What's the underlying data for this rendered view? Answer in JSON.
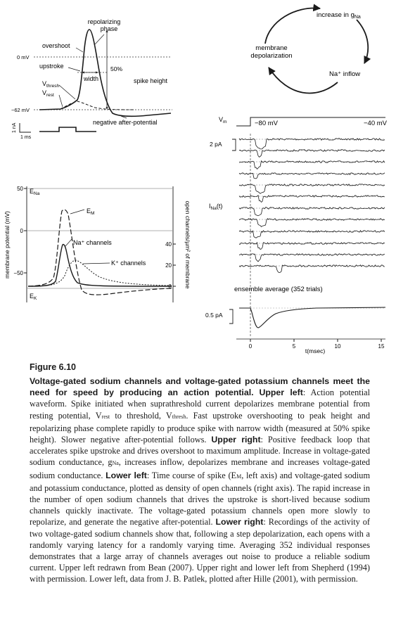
{
  "panel_ul": {
    "repolarizing": "repolarizing",
    "phase": "phase",
    "overshoot": "overshoot",
    "zero_mv": "0 mV",
    "upstroke": "upstroke",
    "fifty_pct": "50%",
    "width": "width",
    "spike_height": "spike height",
    "vthresh_v": "V",
    "vthresh_sub": "thresh",
    "vrest_v": "V",
    "vrest_sub": "rest",
    "minus62": "−62 mV",
    "neg_after": "negative after-potential",
    "one_na": "1 nA",
    "one_ms": "1 ms"
  },
  "panel_ur": {
    "increase_in_g": "increase in g",
    "g_sub": "Na",
    "membrane": "membrane",
    "depolarization": "depolarization",
    "na_inflow": "Na⁺ inflow"
  },
  "panel_ll": {
    "ena_e": "E",
    "ena_sub": "Na",
    "ek_e": "E",
    "ek_sub": "K",
    "em_e": "E",
    "em_sub": "M",
    "y_50": "50",
    "y_0": "0",
    "y_m50": "−50",
    "yaxis_left": "membrane potential (mV)",
    "yaxis_right": "open channels/µm² of membrane",
    "r_40": "40",
    "r_20": "20",
    "r_0": "0",
    "na_channels": "Na⁺ channels",
    "k_channels": "K⁺ channels"
  },
  "panel_lr": {
    "vm_v": "V",
    "vm_sub": "m",
    "m80": "−80 mV",
    "m40": "−40 mV",
    "two_pa": "2 pA",
    "ina_i": "I",
    "ina_sub": "Na",
    "ina_t": "(t)",
    "ensemble": "ensemble average (352 trials)",
    "half_pa": "0.5 pA",
    "ticks": [
      "0",
      "5",
      "10",
      "15"
    ],
    "xlabel": "t(msec)"
  },
  "caption": {
    "label": "Figure 6.10",
    "title": "Voltage-gated sodium channels and voltage-gated potassium channels meet the need for speed by producing an action potential.",
    "segments": [
      {
        "b": "Upper left"
      },
      {
        "t": ": Action potential waveform. Spike initiated when suprathreshold current depolarizes membrane potential from resting potential, V"
      },
      {
        "s": "rest"
      },
      {
        "t": " to threshold, V"
      },
      {
        "s": "thresh"
      },
      {
        "t": ". Fast upstroke overshooting to peak height and repolarizing phase complete rapidly to produce spike with narrow width (measured at 50% spike height). Slower negative after-potential follows. "
      },
      {
        "b": "Upper right"
      },
      {
        "t": ": Positive feedback loop that accelerates spike upstroke and drives overshoot to maximum amplitude. Increase in voltage-gated sodium conductance, g"
      },
      {
        "s": "Na"
      },
      {
        "t": ", increases inflow, depolarizes membrane and increases voltage-gated sodium conductance. "
      },
      {
        "b": "Lower left"
      },
      {
        "t": ": Time course of spike (E"
      },
      {
        "s": "M"
      },
      {
        "t": ", left axis) and voltage-gated sodium and potassium conductance, plotted as density of open channels (right axis). The rapid increase in the number of open sodium channels that drives the upstroke is short-lived because sodium channels quickly inactivate. The voltage-gated potassium channels open more slowly to repolarize, and generate the negative after-potential. "
      },
      {
        "b": "Lower right"
      },
      {
        "t": ": Recordings of the activity of two voltage-gated sodium channels show that, following a step depolarization, each opens with a randomly varying latency for a randomly varying time. Averaging 352 individual responses demonstrates that a large array of channels averages out noise to produce a reliable sodium current. Upper left redrawn from Bean (2007). Upper right and lower left from Shepherd (1994) with permission. Lower left, data from J. B. Patlek, plotted after Hille (2001), with permission."
      }
    ]
  }
}
